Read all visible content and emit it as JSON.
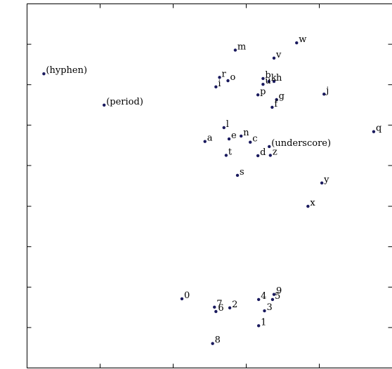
{
  "chart_data": {
    "type": "scatter",
    "title": "",
    "xlabel": "",
    "ylabel": "",
    "grid": false,
    "xlim": [
      0,
      100
    ],
    "ylim": [
      0,
      100
    ],
    "xticks": [
      0,
      20,
      40,
      60,
      80,
      100
    ],
    "yticks": [
      0,
      11.1,
      22.2,
      33.3,
      44.4,
      55.6,
      66.7,
      77.8,
      88.9,
      100
    ],
    "tick_labels_shown": false,
    "marker_color": "#1a1a5e",
    "points": [
      {
        "label": "(hyphen)",
        "x": 4.6,
        "y": 80.8
      },
      {
        "label": "(period)",
        "x": 21.1,
        "y": 72.2
      },
      {
        "label": "m",
        "x": 57.0,
        "y": 87.3
      },
      {
        "label": "w",
        "x": 73.8,
        "y": 89.3
      },
      {
        "label": "v",
        "x": 67.6,
        "y": 85.1
      },
      {
        "label": "r",
        "x": 52.7,
        "y": 79.8
      },
      {
        "label": "o",
        "x": 55.0,
        "y": 78.9
      },
      {
        "label": "b",
        "x": 64.6,
        "y": 79.5
      },
      {
        "label": "k",
        "x": 66.2,
        "y": 78.7
      },
      {
        "label": "h",
        "x": 67.6,
        "y": 78.7
      },
      {
        "label": "u",
        "x": 64.6,
        "y": 77.9
      },
      {
        "label": "i",
        "x": 51.7,
        "y": 77.2
      },
      {
        "label": "p",
        "x": 63.2,
        "y": 75.0
      },
      {
        "label": "j",
        "x": 81.3,
        "y": 75.2
      },
      {
        "label": "g",
        "x": 68.3,
        "y": 73.7
      },
      {
        "label": "f",
        "x": 67.1,
        "y": 71.6
      },
      {
        "label": "q",
        "x": 94.9,
        "y": 64.9
      },
      {
        "label": "l",
        "x": 53.9,
        "y": 66.0
      },
      {
        "label": "a",
        "x": 48.7,
        "y": 62.2
      },
      {
        "label": "e",
        "x": 55.3,
        "y": 62.9
      },
      {
        "label": "n",
        "x": 58.6,
        "y": 63.7
      },
      {
        "label": "c",
        "x": 61.1,
        "y": 62.0
      },
      {
        "label": "(underscore)",
        "x": 66.3,
        "y": 60.8
      },
      {
        "label": "t",
        "x": 54.5,
        "y": 58.4
      },
      {
        "label": "d",
        "x": 63.2,
        "y": 58.3
      },
      {
        "label": "z",
        "x": 66.6,
        "y": 58.4
      },
      {
        "label": "s",
        "x": 57.6,
        "y": 52.9
      },
      {
        "label": "y",
        "x": 80.7,
        "y": 50.8
      },
      {
        "label": "x",
        "x": 76.9,
        "y": 44.4
      },
      {
        "label": "0",
        "x": 42.4,
        "y": 19.0
      },
      {
        "label": "7",
        "x": 51.3,
        "y": 16.7
      },
      {
        "label": "6",
        "x": 51.7,
        "y": 15.5
      },
      {
        "label": "2",
        "x": 55.5,
        "y": 16.5
      },
      {
        "label": "9",
        "x": 67.6,
        "y": 20.2
      },
      {
        "label": "4",
        "x": 63.4,
        "y": 18.8
      },
      {
        "label": "5",
        "x": 67.2,
        "y": 18.8
      },
      {
        "label": "3",
        "x": 65.0,
        "y": 15.7
      },
      {
        "label": "1",
        "x": 63.4,
        "y": 11.6
      },
      {
        "label": "8",
        "x": 50.8,
        "y": 6.7
      }
    ]
  }
}
